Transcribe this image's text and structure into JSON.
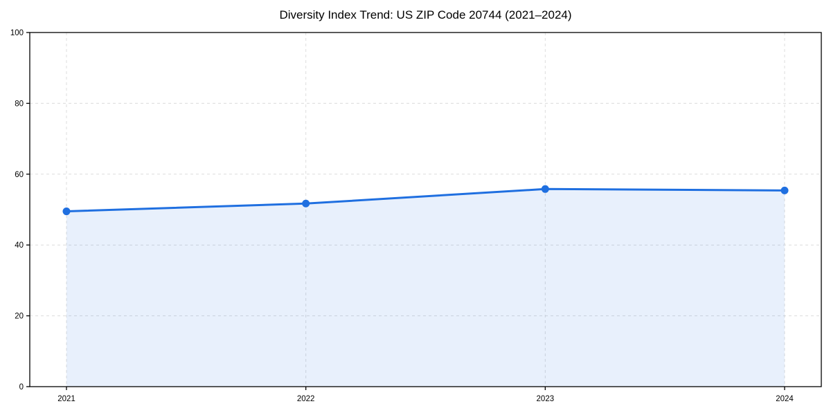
{
  "title": "Diversity Index Trend: US ZIP Code 20744 (2021–2024)",
  "chart_data": {
    "type": "line",
    "title": "Diversity Index Trend: US ZIP Code 20744 (2021–2024)",
    "x": [
      2021,
      2022,
      2023,
      2024
    ],
    "categories": [
      "2021",
      "2022",
      "2023",
      "2024"
    ],
    "series": [
      {
        "name": "Diversity Index",
        "values": [
          49.5,
          51.7,
          55.8,
          55.4
        ]
      }
    ],
    "xlabel": "",
    "ylabel": "",
    "ylim": [
      0,
      100
    ],
    "yticks": [
      0,
      20,
      40,
      60,
      80,
      100
    ],
    "xticks": [
      "2021",
      "2022",
      "2023",
      "2024"
    ],
    "grid": "on",
    "grid_style": "dashed",
    "legend_position": "none",
    "area_fill": true,
    "marker": "circle",
    "colors": {
      "line": "#1f6fe0",
      "marker": "#1f6fe0",
      "area_fill": "rgba(31,111,224,0.10)",
      "grid": "#dcdcdc",
      "axis_frame": "#000000",
      "tick_text": "#000000",
      "background": "#ffffff"
    }
  }
}
